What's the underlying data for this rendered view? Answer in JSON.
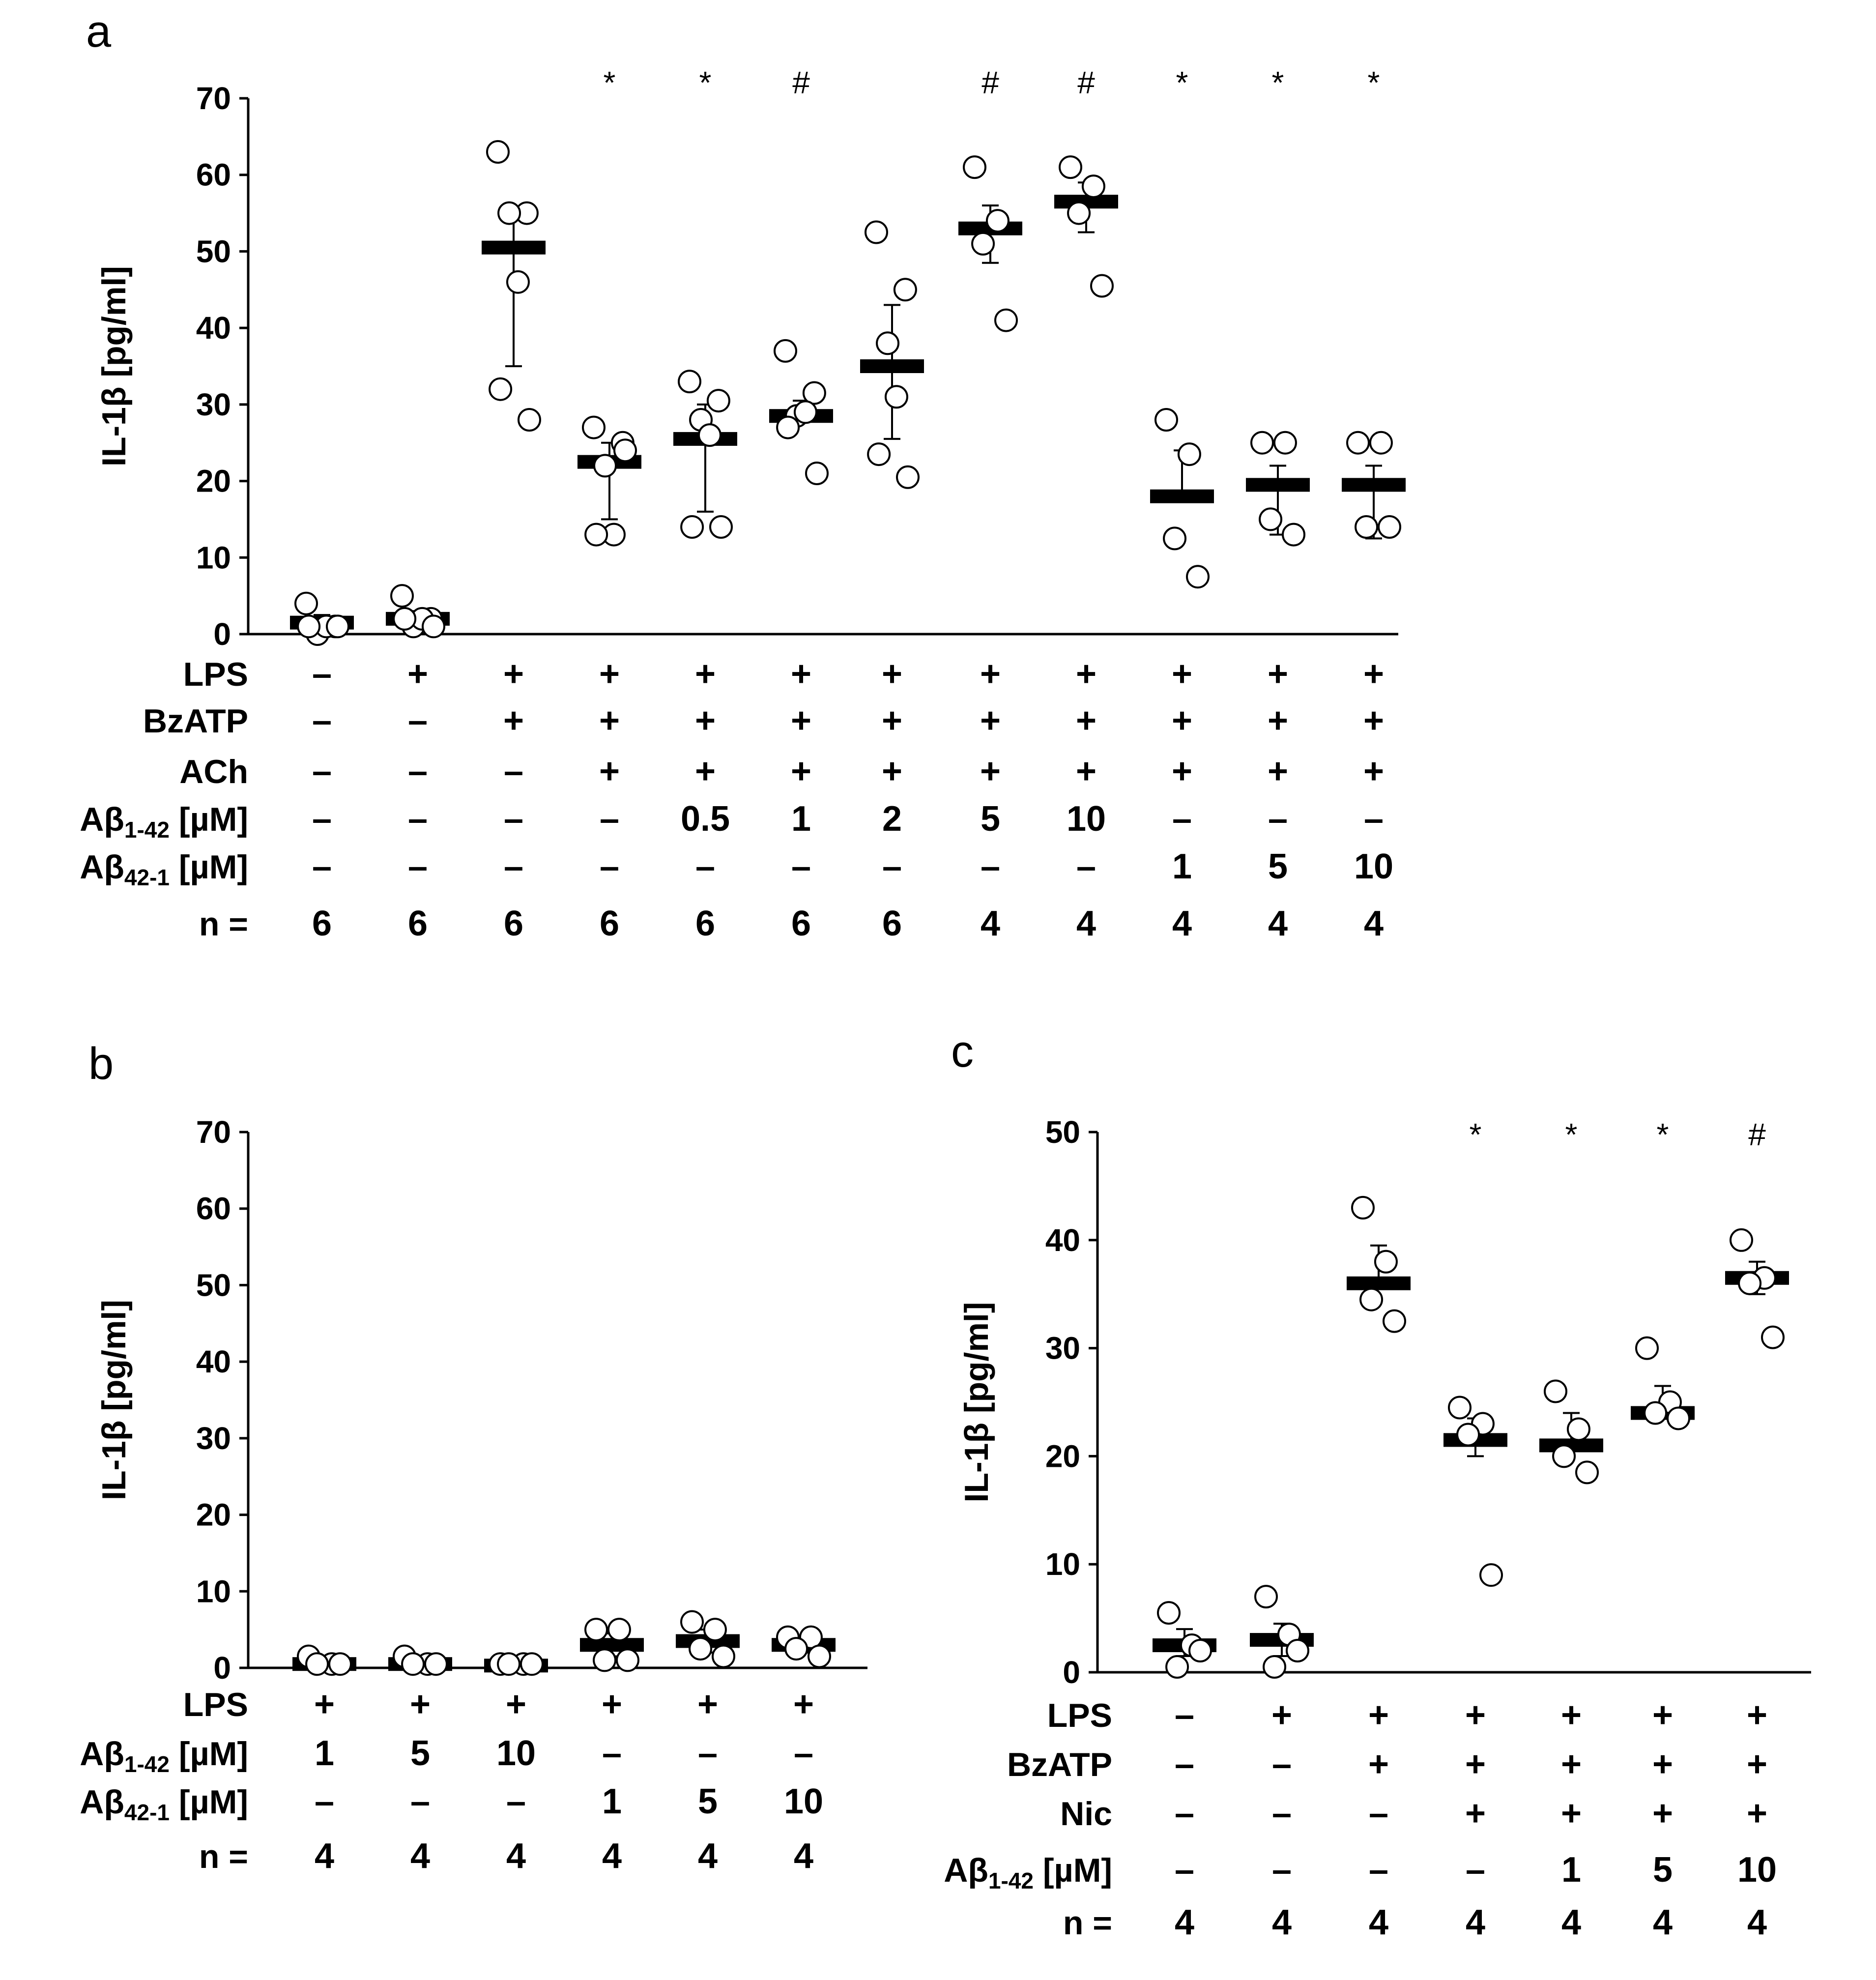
{
  "figure": {
    "panels": [
      "a",
      "b",
      "c"
    ]
  },
  "chart_data": [
    {
      "panel": "a",
      "type": "scatter",
      "ylabel": "IL-1β [pg/ml]",
      "ylim": [
        0,
        70
      ],
      "yticks": [
        "0",
        "10",
        "20",
        "30",
        "40",
        "50",
        "60",
        "70"
      ],
      "groups": [
        {
          "points": [
            4,
            1,
            0,
            1,
            1,
            1
          ],
          "mean": 1.5,
          "sd_upper": 2.5,
          "sd_lower": 0.5,
          "sig": ""
        },
        {
          "points": [
            5,
            2,
            1,
            2,
            2,
            1
          ],
          "mean": 2,
          "sd_upper": 3,
          "sd_lower": 1,
          "sig": ""
        },
        {
          "points": [
            63,
            55,
            55,
            46,
            32,
            28
          ],
          "mean": 50.5,
          "sd_upper": 55,
          "sd_lower": 35,
          "sig": ""
        },
        {
          "points": [
            27,
            25,
            22,
            13,
            13,
            24
          ],
          "mean": 22.5,
          "sd_upper": 25,
          "sd_lower": 15,
          "sig": "*"
        },
        {
          "points": [
            33,
            30.5,
            28,
            26,
            14,
            14
          ],
          "mean": 25.5,
          "sd_upper": 30,
          "sd_lower": 16,
          "sig": "*"
        },
        {
          "points": [
            37,
            31.5,
            28.5,
            29,
            27,
            21
          ],
          "mean": 28.5,
          "sd_upper": 30.5,
          "sd_lower": 28,
          "sig": "#"
        },
        {
          "points": [
            52.5,
            45,
            38,
            31,
            23.5,
            20.5
          ],
          "mean": 35,
          "sd_upper": 43,
          "sd_lower": 25.5,
          "sig": ""
        },
        {
          "points": [
            61,
            54,
            51,
            41
          ],
          "mean": 53,
          "sd_upper": 56,
          "sd_lower": 48.5,
          "sig": "#"
        },
        {
          "points": [
            61,
            58.5,
            55,
            45.5
          ],
          "mean": 56.5,
          "sd_upper": 59,
          "sd_lower": 52.5,
          "sig": "#"
        },
        {
          "points": [
            28,
            23.5,
            12.5,
            7.5
          ],
          "mean": 18,
          "sd_upper": 24,
          "sd_lower": 18,
          "sig": "*"
        },
        {
          "points": [
            25,
            25,
            15,
            13
          ],
          "mean": 19.5,
          "sd_upper": 22,
          "sd_lower": 13,
          "sig": "*"
        },
        {
          "points": [
            25,
            25,
            14,
            14
          ],
          "mean": 19.5,
          "sd_upper": 22,
          "sd_lower": 12.5,
          "sig": "*"
        }
      ],
      "table": {
        "rows": [
          {
            "label": "LPS",
            "values": [
              "–",
              "+",
              "+",
              "+",
              "+",
              "+",
              "+",
              "+",
              "+",
              "+",
              "+",
              "+"
            ]
          },
          {
            "label": "BzATP",
            "values": [
              "–",
              "–",
              "+",
              "+",
              "+",
              "+",
              "+",
              "+",
              "+",
              "+",
              "+",
              "+"
            ]
          },
          {
            "label": "ACh",
            "values": [
              "–",
              "–",
              "–",
              "+",
              "+",
              "+",
              "+",
              "+",
              "+",
              "+",
              "+",
              "+"
            ]
          },
          {
            "label": "Aβ",
            "label_sub": "1-42",
            "label_unit": " [µM]",
            "values": [
              "–",
              "–",
              "–",
              "–",
              "0.5",
              "1",
              "2",
              "5",
              "10",
              "–",
              "–",
              "–"
            ]
          },
          {
            "label": "Aβ",
            "label_sub": "42-1",
            "label_unit": " [µM]",
            "values": [
              "–",
              "–",
              "–",
              "–",
              "–",
              "–",
              "–",
              "–",
              "–",
              "1",
              "5",
              "10"
            ]
          },
          {
            "label": "n =",
            "values": [
              "6",
              "6",
              "6",
              "6",
              "6",
              "6",
              "6",
              "4",
              "4",
              "4",
              "4",
              "4"
            ]
          }
        ]
      }
    },
    {
      "panel": "b",
      "type": "scatter",
      "ylabel": "IL-1β [pg/ml]",
      "ylim": [
        0,
        70
      ],
      "yticks": [
        "0",
        "10",
        "20",
        "30",
        "40",
        "50",
        "60",
        "70"
      ],
      "groups": [
        {
          "points": [
            1.5,
            0.5,
            0.5,
            0.5
          ],
          "mean": 0.5,
          "sd_upper": 1,
          "sd_lower": 0.2,
          "sig": ""
        },
        {
          "points": [
            1.5,
            0.5,
            0.5,
            0.5
          ],
          "mean": 0.5,
          "sd_upper": 1,
          "sd_lower": 0.2,
          "sig": ""
        },
        {
          "points": [
            0.5,
            0.5,
            0.5,
            0.5
          ],
          "mean": 0.3,
          "sd_upper": 0.6,
          "sd_lower": 0.1,
          "sig": ""
        },
        {
          "points": [
            5,
            5,
            1,
            1
          ],
          "mean": 3,
          "sd_upper": 4.5,
          "sd_lower": 1.5,
          "sig": ""
        },
        {
          "points": [
            6,
            5,
            2.5,
            1.5
          ],
          "mean": 3.5,
          "sd_upper": 5,
          "sd_lower": 2,
          "sig": ""
        },
        {
          "points": [
            4,
            4,
            2.5,
            1.5
          ],
          "mean": 3,
          "sd_upper": 4,
          "sd_lower": 2,
          "sig": ""
        }
      ],
      "table": {
        "rows": [
          {
            "label": "LPS",
            "values": [
              "+",
              "+",
              "+",
              "+",
              "+",
              "+"
            ]
          },
          {
            "label": "Aβ",
            "label_sub": "1-42",
            "label_unit": " [µM]",
            "values": [
              "1",
              "5",
              "10",
              "–",
              "–",
              "–"
            ]
          },
          {
            "label": "Aβ",
            "label_sub": "42-1",
            "label_unit": " [µM]",
            "values": [
              "–",
              "–",
              "–",
              "1",
              "5",
              "10"
            ]
          },
          {
            "label": "n =",
            "values": [
              "4",
              "4",
              "4",
              "4",
              "4",
              "4"
            ]
          }
        ]
      }
    },
    {
      "panel": "c",
      "type": "scatter",
      "ylabel": "IL-1β [pg/ml]",
      "ylim": [
        0,
        50
      ],
      "yticks": [
        "0",
        "10",
        "20",
        "30",
        "40",
        "50"
      ],
      "groups": [
        {
          "points": [
            5.5,
            2.5,
            0.5,
            2
          ],
          "mean": 2.5,
          "sd_upper": 4,
          "sd_lower": 1.5,
          "sig": ""
        },
        {
          "points": [
            7,
            3.5,
            0.5,
            2
          ],
          "mean": 3,
          "sd_upper": 4.5,
          "sd_lower": 1.5,
          "sig": ""
        },
        {
          "points": [
            43,
            38,
            34.5,
            32.5
          ],
          "mean": 36,
          "sd_upper": 39.5,
          "sd_lower": 36,
          "sig": ""
        },
        {
          "points": [
            24.5,
            23,
            22,
            9
          ],
          "mean": 21.5,
          "sd_upper": 23.5,
          "sd_lower": 20,
          "sig": "*"
        },
        {
          "points": [
            26,
            22.5,
            20,
            18.5
          ],
          "mean": 21,
          "sd_upper": 24,
          "sd_lower": 21,
          "sig": "*"
        },
        {
          "points": [
            30,
            25,
            24,
            23.5
          ],
          "mean": 24,
          "sd_upper": 26.5,
          "sd_lower": 24,
          "sig": "*"
        },
        {
          "points": [
            40,
            36.5,
            36,
            31
          ],
          "mean": 36.5,
          "sd_upper": 38,
          "sd_lower": 35,
          "sig": "#"
        }
      ],
      "table": {
        "rows": [
          {
            "label": "LPS",
            "values": [
              "–",
              "+",
              "+",
              "+",
              "+",
              "+",
              "+"
            ]
          },
          {
            "label": "BzATP",
            "values": [
              "–",
              "–",
              "+",
              "+",
              "+",
              "+",
              "+"
            ]
          },
          {
            "label": "Nic",
            "values": [
              "–",
              "–",
              "–",
              "+",
              "+",
              "+",
              "+"
            ]
          },
          {
            "label": "Aβ",
            "label_sub": "1-42",
            "label_unit": " [µM]",
            "values": [
              "–",
              "–",
              "–",
              "–",
              "1",
              "5",
              "10"
            ]
          },
          {
            "label": "n =",
            "values": [
              "4",
              "4",
              "4",
              "4",
              "4",
              "4",
              "4"
            ]
          }
        ]
      }
    }
  ]
}
